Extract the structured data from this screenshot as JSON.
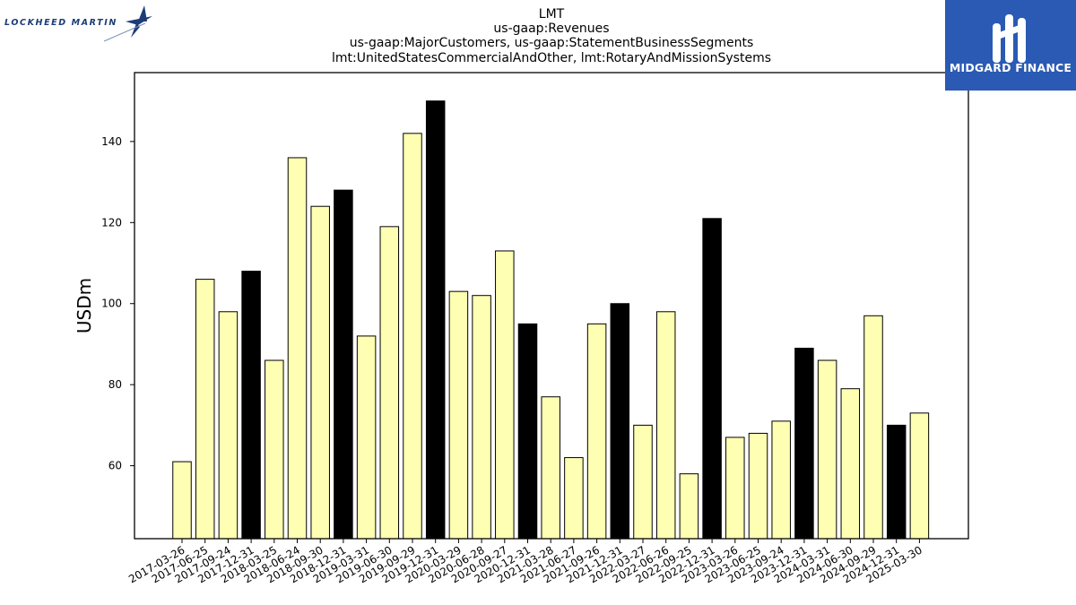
{
  "logos": {
    "left": {
      "text": "LOCKHEED MARTIN",
      "color": "#1c3c78"
    },
    "right": {
      "text": "MIDGARD FINANCE",
      "background": "#2a5ab3",
      "color": "#ffffff"
    }
  },
  "chart_data": {
    "type": "bar",
    "title": [
      "LMT",
      "us-gaap:Revenues",
      "us-gaap:MajorCustomers, us-gaap:StatementBusinessSegments",
      "lmt:UnitedStatesCommercialAndOther, lmt:RotaryAndMissionSystems"
    ],
    "xlabel": "",
    "ylabel": "USDm",
    "ylim": [
      42,
      157
    ],
    "yticks": [
      60,
      80,
      100,
      120,
      140
    ],
    "grid": false,
    "colors": {
      "default": "#ffffb3",
      "q4": "#000000",
      "edge": "#000000"
    },
    "categories": [
      "2017-03-26",
      "2017-06-25",
      "2017-09-24",
      "2017-12-31",
      "2018-03-25",
      "2018-06-24",
      "2018-09-30",
      "2018-12-31",
      "2019-03-31",
      "2019-06-30",
      "2019-09-29",
      "2019-12-31",
      "2020-03-29",
      "2020-06-28",
      "2020-09-27",
      "2020-12-31",
      "2021-03-28",
      "2021-06-27",
      "2021-09-26",
      "2021-12-31",
      "2022-03-27",
      "2022-06-26",
      "2022-09-25",
      "2022-12-31",
      "2023-03-26",
      "2023-06-25",
      "2023-09-24",
      "2023-12-31",
      "2024-03-31",
      "2024-06-30",
      "2024-09-29",
      "2024-12-31",
      "2025-03-30"
    ],
    "values": [
      61,
      106,
      98,
      108,
      86,
      136,
      124,
      128,
      92,
      119,
      142,
      150,
      103,
      102,
      113,
      95,
      77,
      62,
      95,
      100,
      70,
      98,
      58,
      121,
      67,
      68,
      71,
      89,
      86,
      79,
      97,
      70,
      73
    ],
    "highlight": [
      false,
      false,
      false,
      true,
      false,
      false,
      false,
      true,
      false,
      false,
      false,
      true,
      false,
      false,
      false,
      true,
      false,
      false,
      false,
      true,
      false,
      false,
      false,
      true,
      false,
      false,
      false,
      true,
      false,
      false,
      false,
      true,
      false
    ]
  }
}
